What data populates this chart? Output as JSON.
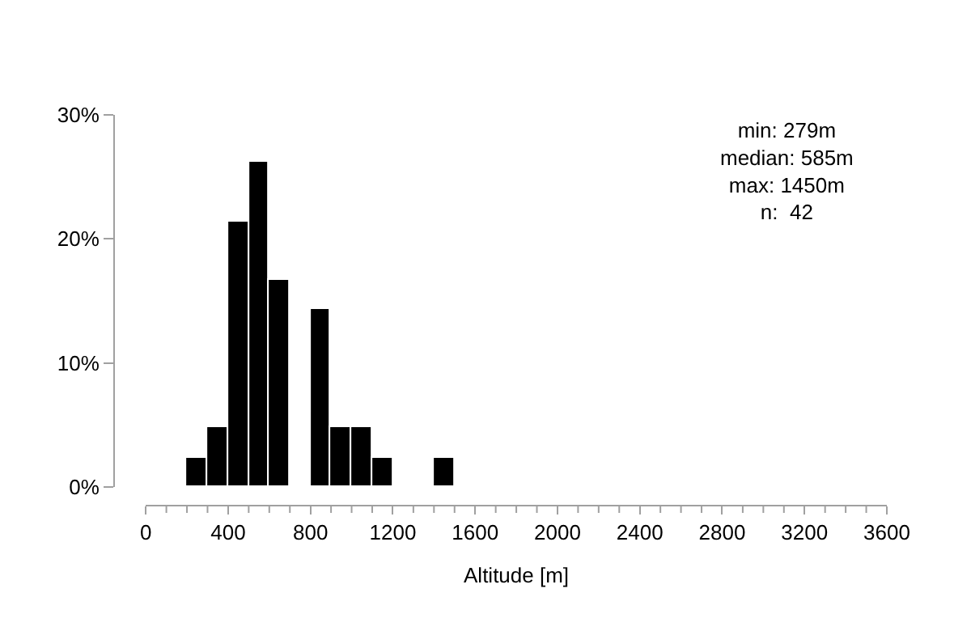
{
  "chart_data": {
    "type": "histogram",
    "xlabel": "Altitude [m]",
    "bins": [
      200,
      300,
      400,
      500,
      600,
      700,
      800,
      900,
      1000,
      1100,
      1200,
      1300,
      1400,
      1500
    ],
    "values": [
      2.4,
      4.8,
      21.4,
      26.2,
      16.7,
      0,
      14.3,
      4.8,
      4.8,
      2.4,
      0,
      0,
      2.4
    ],
    "color": "#000000",
    "xlim": [
      0,
      3600
    ],
    "xticks": [
      0,
      {
        "value": 100,
        "label": null
      },
      {
        "value": 200,
        "label": null
      },
      {
        "value": 300,
        "label": null
      },
      400,
      {
        "value": 500,
        "label": null
      },
      {
        "value": 600,
        "label": null
      },
      {
        "value": 700,
        "label": null
      },
      800,
      {
        "value": 900,
        "label": null
      },
      {
        "value": 1000,
        "label": null
      },
      {
        "value": 1100,
        "label": null
      },
      1200,
      {
        "value": 1300,
        "label": null
      },
      {
        "value": 1400,
        "label": null
      },
      {
        "value": 1500,
        "label": null
      },
      1600,
      {
        "value": 1700,
        "label": null
      },
      {
        "value": 1800,
        "label": null
      },
      {
        "value": 1900,
        "label": null
      },
      2000,
      {
        "value": 2100,
        "label": null
      },
      {
        "value": 2200,
        "label": null
      },
      {
        "value": 2300,
        "label": null
      },
      2400,
      {
        "value": 2500,
        "label": null
      },
      {
        "value": 2600,
        "label": null
      },
      {
        "value": 2700,
        "label": null
      },
      2800,
      {
        "value": 2900,
        "label": null
      },
      {
        "value": 3000,
        "label": null
      },
      {
        "value": 3100,
        "label": null
      },
      3200,
      {
        "value": 3300,
        "label": null
      },
      {
        "value": 3400,
        "label": null
      },
      {
        "value": 3500,
        "label": null
      },
      3600
    ],
    "ylim": [
      0,
      30
    ],
    "yticks": [
      {
        "value": 0,
        "label": "0%"
      },
      {
        "value": 10,
        "label": "10%"
      },
      {
        "value": 20,
        "label": "20%"
      },
      {
        "value": 30,
        "label": "30%"
      }
    ],
    "annotations": [
      "min: 279m",
      "median: 585m",
      "max: 1450m",
      "n:  42"
    ],
    "grid": false
  }
}
